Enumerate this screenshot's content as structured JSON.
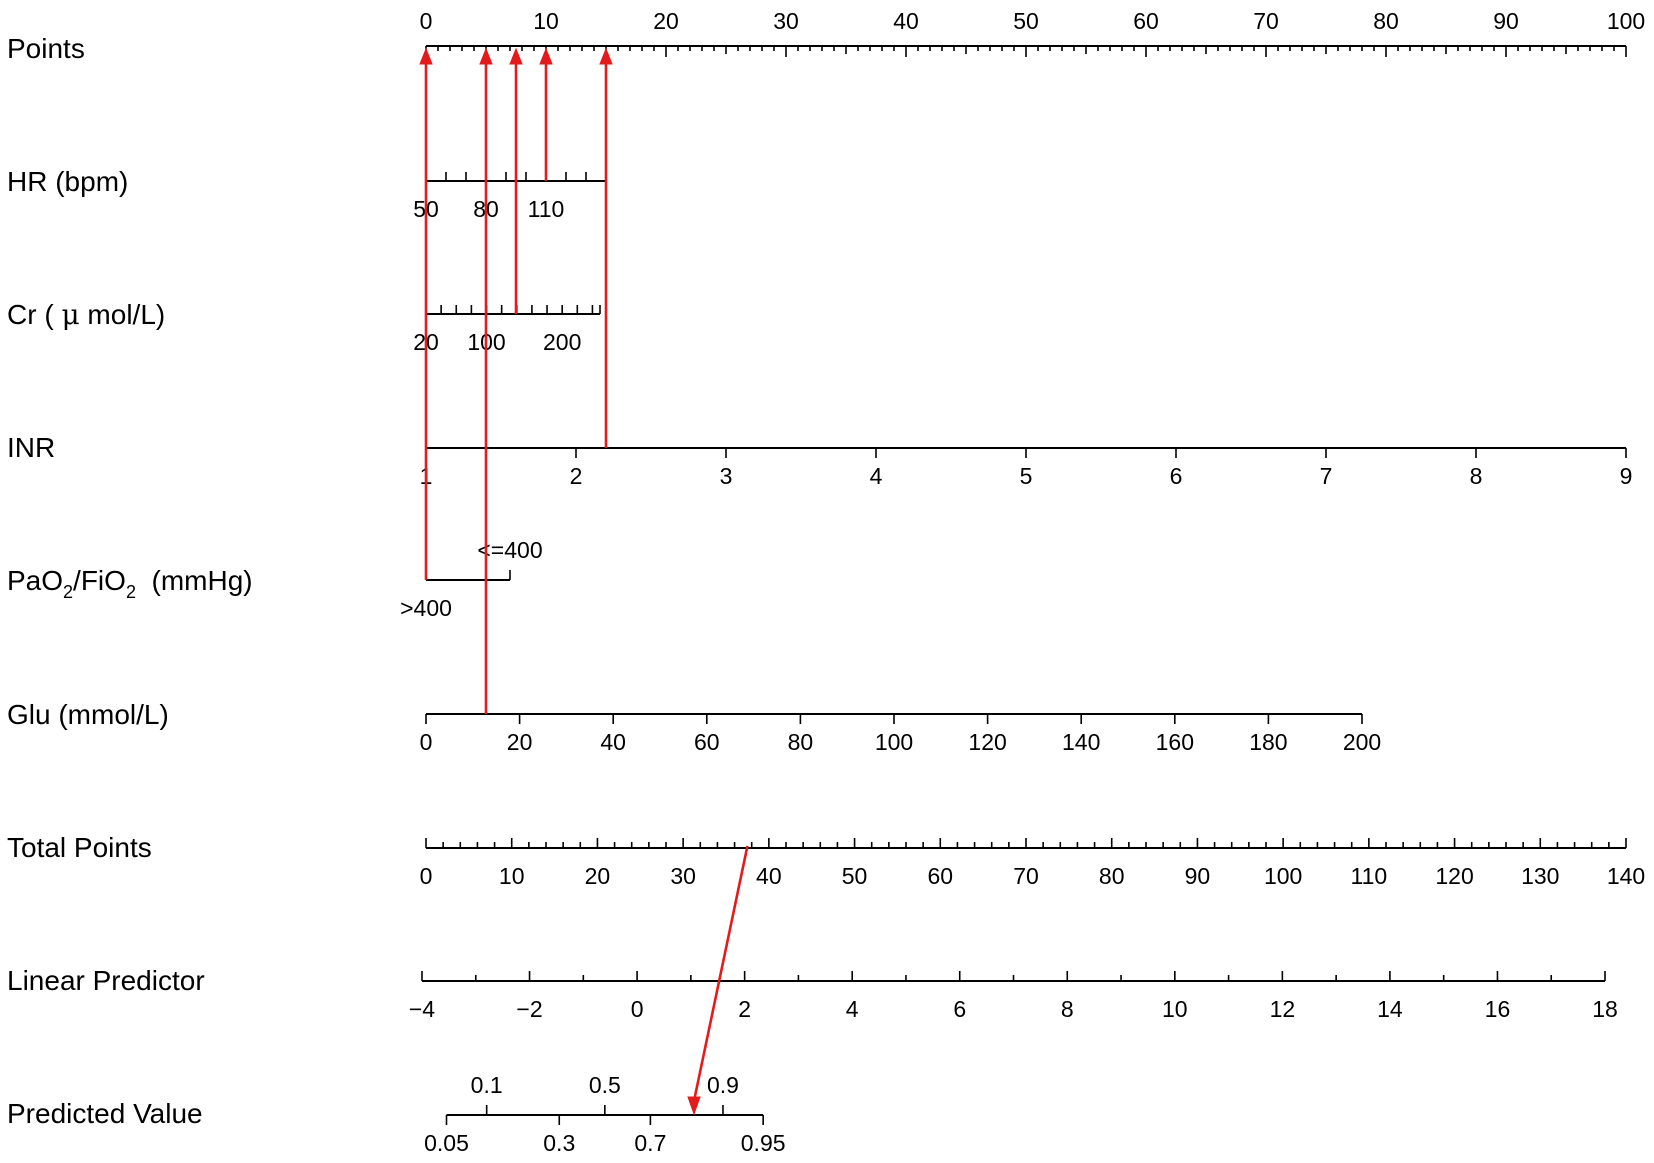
{
  "colors": {
    "axis": "#000000",
    "arrow": "#e21c1c",
    "background": "#ffffff"
  },
  "chart_data": {
    "type": "nomogram",
    "rows": [
      {
        "id": "points",
        "label": "Points",
        "min": 0,
        "max": 100,
        "tick_labels": [
          "0",
          "10",
          "20",
          "30",
          "40",
          "50",
          "60",
          "70",
          "80",
          "90",
          "100"
        ],
        "minor_ticks": 100
      },
      {
        "id": "hr",
        "label": "HR  (bpm)",
        "min": 50,
        "max": 140,
        "tick_labels": [
          "50",
          "80",
          "110"
        ],
        "minor_ticks": 9
      },
      {
        "id": "cr",
        "label_main": "Cr ( ",
        "label_mu": "μ",
        "label_rest": " mol/L)",
        "min": 20,
        "max": 250,
        "tick_labels": [
          "20",
          "100",
          "200"
        ],
        "minor_ticks": 13
      },
      {
        "id": "inr",
        "label": "INR",
        "min": 1,
        "max": 9,
        "tick_labels": [
          "1",
          "2",
          "3",
          "4",
          "5",
          "6",
          "7",
          "8",
          "9"
        ]
      },
      {
        "id": "pf",
        "label_pa": "PaO",
        "label_sub1": "2",
        "label_fi": "/FiO",
        "label_sub2": "2",
        "label_unit": "  (mmHg)",
        "categories": [
          ">400",
          "<=400"
        ]
      },
      {
        "id": "glu",
        "label": "Glu (mmol/L)",
        "min": 0,
        "max": 200,
        "tick_labels": [
          "0",
          "20",
          "40",
          "60",
          "80",
          "100",
          "120",
          "140",
          "160",
          "180",
          "200"
        ]
      },
      {
        "id": "total",
        "label": "Total Points",
        "min": 0,
        "max": 140,
        "tick_labels": [
          "0",
          "10",
          "20",
          "30",
          "40",
          "50",
          "60",
          "70",
          "80",
          "90",
          "100",
          "110",
          "120",
          "130",
          "140"
        ],
        "minor_ticks": 70
      },
      {
        "id": "lp",
        "label": "Linear Predictor",
        "min": -4,
        "max": 18,
        "tick_labels": [
          "−4",
          "−2",
          "0",
          "2",
          "4",
          "6",
          "8",
          "10",
          "12",
          "14",
          "16",
          "18"
        ],
        "minor_ticks": 22
      },
      {
        "id": "pv",
        "label": "Predicted Value",
        "tick_labels_top": [
          "0.1",
          "0.5",
          "0.9"
        ],
        "tick_labels_bottom": [
          "0.05",
          "0.3",
          "0.7",
          "0.95"
        ]
      }
    ],
    "example": {
      "points_per_variable": [
        0,
        5,
        7.5,
        10,
        15
      ],
      "total_points": 37.5,
      "predicted_value": 0.84
    }
  }
}
